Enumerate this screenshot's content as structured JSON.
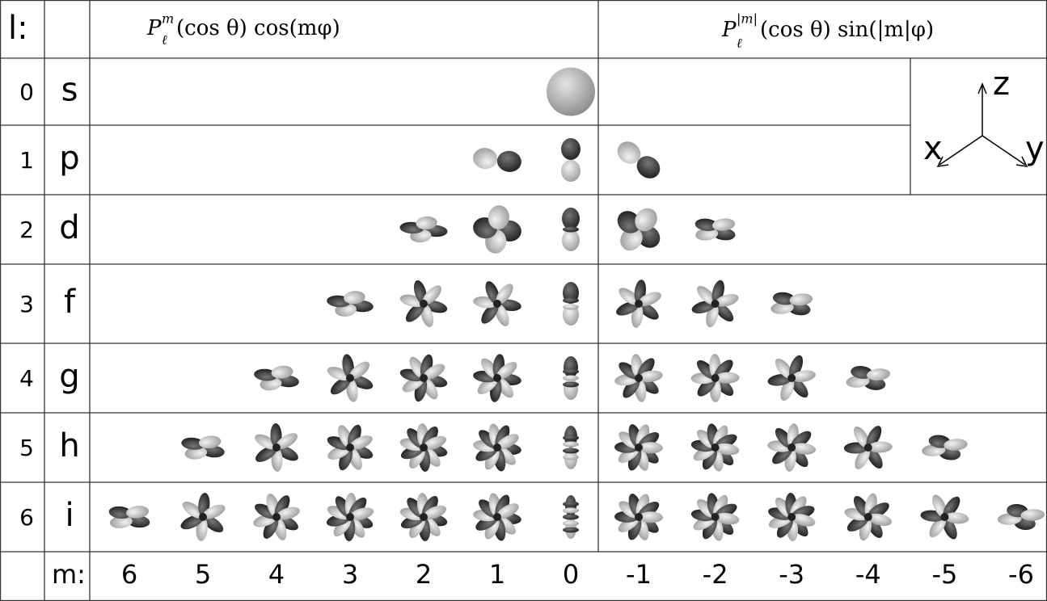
{
  "header": {
    "l_label": "l:",
    "cos_formula": {
      "base": "P",
      "sup": "m",
      "sub": "ℓ",
      "rest": "(cos θ)  cos(mφ)"
    },
    "sin_formula": {
      "base": "P",
      "sup": "|m|",
      "sub": "ℓ",
      "rest": "(cos θ)  sin(|m|φ)"
    }
  },
  "rows": [
    {
      "l": 0,
      "letter": "s"
    },
    {
      "l": 1,
      "letter": "p"
    },
    {
      "l": 2,
      "letter": "d"
    },
    {
      "l": 3,
      "letter": "f"
    },
    {
      "l": 4,
      "letter": "g"
    },
    {
      "l": 5,
      "letter": "h"
    },
    {
      "l": 6,
      "letter": "i"
    }
  ],
  "m_label": "m:",
  "m_values": [
    6,
    5,
    4,
    3,
    2,
    1,
    0,
    -1,
    -2,
    -3,
    -4,
    -5,
    -6
  ],
  "axes": {
    "z": "z",
    "x": "x",
    "y": "y"
  }
}
